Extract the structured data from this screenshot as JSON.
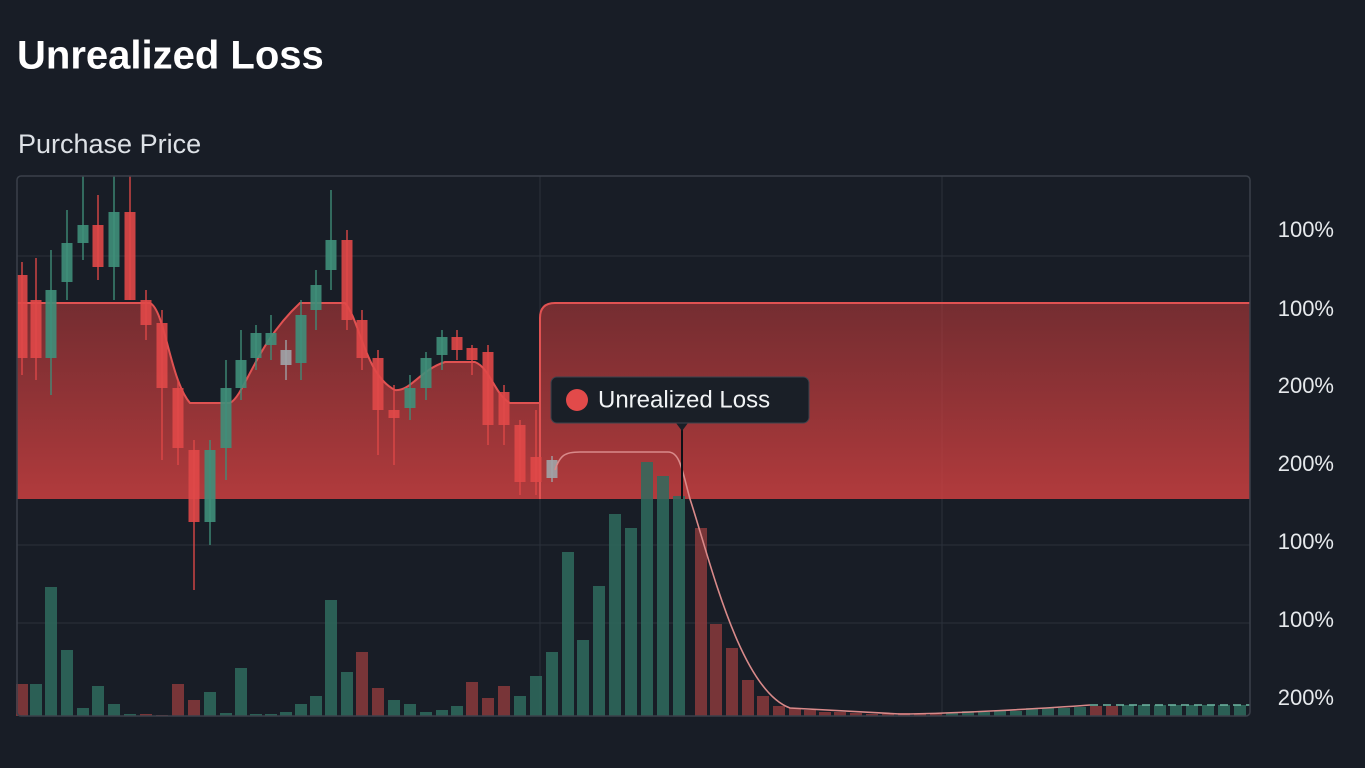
{
  "header": {
    "title": "Unrealized Loss",
    "subtitle": "Purchase Price"
  },
  "axis": {
    "labels": [
      "100%",
      "100%",
      "200%",
      "200%",
      "100%",
      "100%",
      "200%"
    ]
  },
  "tooltip": {
    "label": "Unrealized Loss"
  }
}
